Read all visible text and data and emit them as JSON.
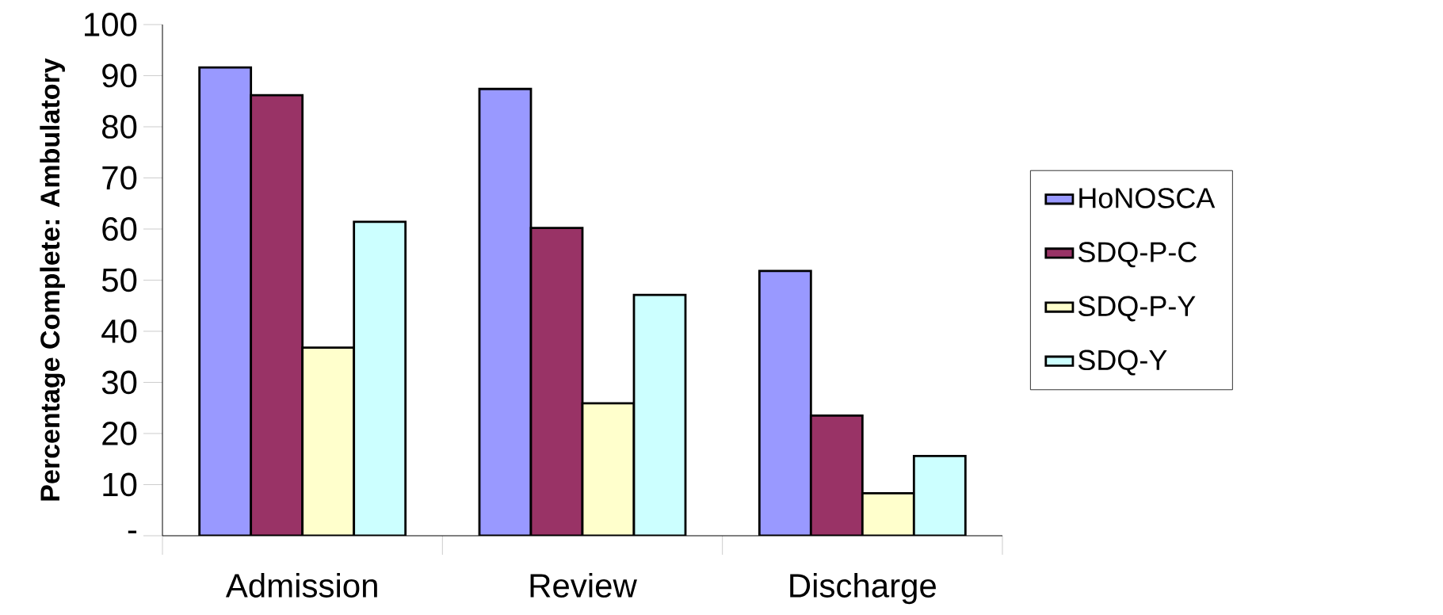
{
  "chart_data": {
    "type": "bar",
    "ylabel": "Percentage Complete: Ambulatory",
    "categories": [
      "Admission",
      "Review",
      "Discharge"
    ],
    "series": [
      {
        "name": "HoNOSCA",
        "color": "#9999ff",
        "values": [
          91.6,
          87.4,
          51.8
        ]
      },
      {
        "name": "SDQ-P-C",
        "color": "#993366",
        "values": [
          86.2,
          60.2,
          23.5
        ]
      },
      {
        "name": "SDQ-P-Y",
        "color": "#ffffcc",
        "values": [
          36.8,
          25.9,
          8.3
        ]
      },
      {
        "name": "SDQ-Y",
        "color": "#ccffff",
        "values": [
          61.4,
          47.1,
          15.6
        ]
      }
    ],
    "ylim": [
      0,
      100
    ],
    "yticks": [
      {
        "value": 0,
        "label": "-"
      },
      10,
      20,
      30,
      40,
      50,
      60,
      70,
      80,
      90,
      100
    ],
    "grid": false,
    "legend": "right"
  }
}
